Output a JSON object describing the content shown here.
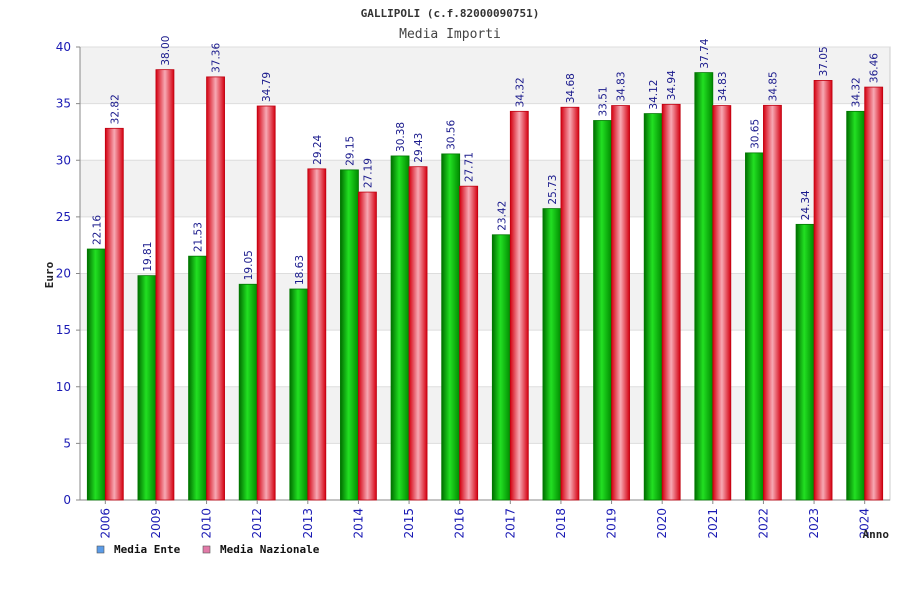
{
  "chart_data": {
    "type": "bar",
    "title": "GALLIPOLI (c.f.82000090751)",
    "subtitle": "Media Importi",
    "xlabel": "Anno",
    "ylabel": "Euro",
    "ylim": [
      0,
      40
    ],
    "yticks": [
      "0",
      "5",
      "10",
      "15",
      "20",
      "25",
      "30",
      "35",
      "40"
    ],
    "grid": true,
    "legend_position": "bottom-left",
    "categories": [
      "2006",
      "2009",
      "2010",
      "2012",
      "2013",
      "2014",
      "2015",
      "2016",
      "2017",
      "2018",
      "2019",
      "2020",
      "2021",
      "2022",
      "2023",
      "2024"
    ],
    "series": [
      {
        "name": "Media Ente",
        "color": "#00b400",
        "legend_color": "#5b9ce8",
        "values": [
          22.16,
          19.81,
          21.53,
          19.05,
          18.63,
          29.15,
          30.38,
          30.56,
          23.42,
          25.73,
          33.51,
          34.12,
          37.74,
          30.65,
          24.34,
          34.32
        ],
        "labels": [
          "22.16",
          "19.81",
          "21.53",
          "19.05",
          "18.63",
          "29.15",
          "30.38",
          "30.56",
          "23.42",
          "25.73",
          "33.51",
          "34.12",
          "37.74",
          "30.65",
          "24.34",
          "34.32"
        ]
      },
      {
        "name": "Media Nazionale",
        "color": "#e8141e",
        "legend_color": "#e27aa8",
        "values": [
          32.82,
          38.0,
          37.36,
          34.79,
          29.24,
          27.19,
          29.43,
          27.71,
          34.32,
          34.68,
          34.83,
          34.94,
          34.83,
          34.85,
          37.05,
          36.46
        ],
        "labels": [
          "32.82",
          "38.00",
          "37.36",
          "34.79",
          "29.24",
          "27.19",
          "29.43",
          "27.71",
          "34.32",
          "34.68",
          "34.83",
          "34.94",
          "34.83",
          "34.85",
          "37.05",
          "36.46"
        ]
      }
    ]
  }
}
